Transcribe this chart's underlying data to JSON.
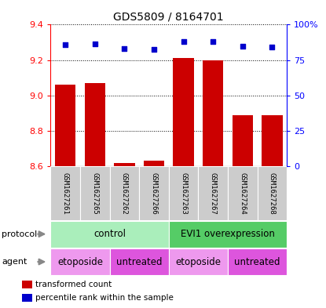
{
  "title": "GDS5809 / 8164701",
  "samples": [
    "GSM1627261",
    "GSM1627265",
    "GSM1627262",
    "GSM1627266",
    "GSM1627263",
    "GSM1627267",
    "GSM1627264",
    "GSM1627268"
  ],
  "bar_values": [
    9.06,
    9.07,
    8.62,
    8.63,
    9.21,
    9.2,
    8.89,
    8.89
  ],
  "percentile_values": [
    86,
    86.5,
    83,
    82.5,
    88,
    88,
    84.5,
    84
  ],
  "ylim_left": [
    8.6,
    9.4
  ],
  "ylim_right": [
    0,
    100
  ],
  "yticks_left": [
    8.6,
    8.8,
    9.0,
    9.2,
    9.4
  ],
  "yticks_right": [
    0,
    25,
    50,
    75,
    100
  ],
  "bar_color": "#cc0000",
  "scatter_color": "#0000cc",
  "protocol_labels": [
    {
      "text": "control",
      "start": 0,
      "end": 4,
      "color": "#aaeebb"
    },
    {
      "text": "EVI1 overexpression",
      "start": 4,
      "end": 8,
      "color": "#55cc66"
    }
  ],
  "agent_labels": [
    {
      "text": "etoposide",
      "start": 0,
      "end": 2,
      "color": "#ee99ee"
    },
    {
      "text": "untreated",
      "start": 2,
      "end": 4,
      "color": "#dd55dd"
    },
    {
      "text": "etoposide",
      "start": 4,
      "end": 6,
      "color": "#ee99ee"
    },
    {
      "text": "untreated",
      "start": 6,
      "end": 8,
      "color": "#dd55dd"
    }
  ],
  "legend_items": [
    {
      "label": "transformed count",
      "color": "#cc0000"
    },
    {
      "label": "percentile rank within the sample",
      "color": "#0000cc"
    }
  ],
  "protocol_row_label": "protocol",
  "agent_row_label": "agent",
  "sample_bg_color": "#cccccc",
  "sample_border_color": "#ffffff"
}
